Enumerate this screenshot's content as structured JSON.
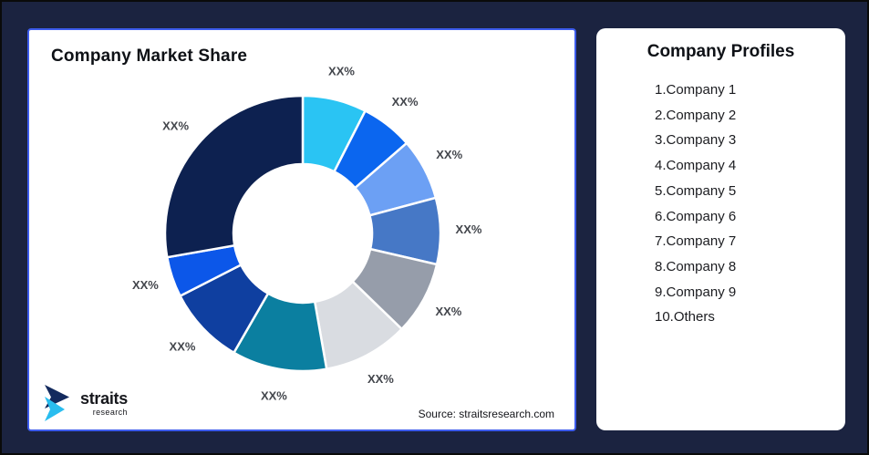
{
  "frame": {
    "background_color": "#1B2340",
    "outer_border_color": "#0A0A0A"
  },
  "market_share_card": {
    "title": "Company Market Share",
    "border_color": "#3D5CEC",
    "source": "Source: straitsresearch.com",
    "logo": {
      "name": "straits",
      "sub": "research",
      "mark_colors": {
        "navy": "#132A5E",
        "cyan": "#29BDEF"
      }
    }
  },
  "chart_data": {
    "type": "pie",
    "donut": true,
    "title": "Company Market Share",
    "start_angle_deg": 0,
    "inner_radius_ratio": 0.5,
    "legend_position": "none",
    "label_color": "#43464C",
    "separator_color": "#FFFFFF",
    "segments": [
      {
        "label": "XX%",
        "arc_deg": 27,
        "percent_est": 7.5,
        "color": "#2AC4F3"
      },
      {
        "label": "XX%",
        "arc_deg": 22,
        "percent_est": 6.1,
        "color": "#0B66EF"
      },
      {
        "label": "XX%",
        "arc_deg": 26,
        "percent_est": 7.2,
        "color": "#6CA0F4"
      },
      {
        "label": "XX%",
        "arc_deg": 28,
        "percent_est": 7.8,
        "color": "#4678C6"
      },
      {
        "label": "XX%",
        "arc_deg": 31,
        "percent_est": 8.6,
        "color": "#969DAA"
      },
      {
        "label": "XX%",
        "arc_deg": 36,
        "percent_est": 10.0,
        "color": "#D9DCE1"
      },
      {
        "label": "XX%",
        "arc_deg": 40,
        "percent_est": 11.1,
        "color": "#0B7FA0"
      },
      {
        "label": "XX%",
        "arc_deg": 33,
        "percent_est": 9.2,
        "color": "#0F3FA0"
      },
      {
        "label": "XX%",
        "arc_deg": 17,
        "percent_est": 4.7,
        "color": "#0C57E9"
      },
      {
        "label": "XX%",
        "arc_deg": 100,
        "percent_est": 27.8,
        "color": "#0D2150"
      }
    ]
  },
  "profiles_card": {
    "title": "Company Profiles",
    "items": [
      {
        "text": "1.Company 1"
      },
      {
        "text": "2.Company 2"
      },
      {
        "text": "3.Company 3"
      },
      {
        "text": "4.Company 4"
      },
      {
        "text": "5.Company 5"
      },
      {
        "text": "6.Company 6"
      },
      {
        "text": "7.Company 7"
      },
      {
        "text": "8.Company 8"
      },
      {
        "text": "9.Company 9"
      },
      {
        "text": "10.Others"
      }
    ]
  }
}
